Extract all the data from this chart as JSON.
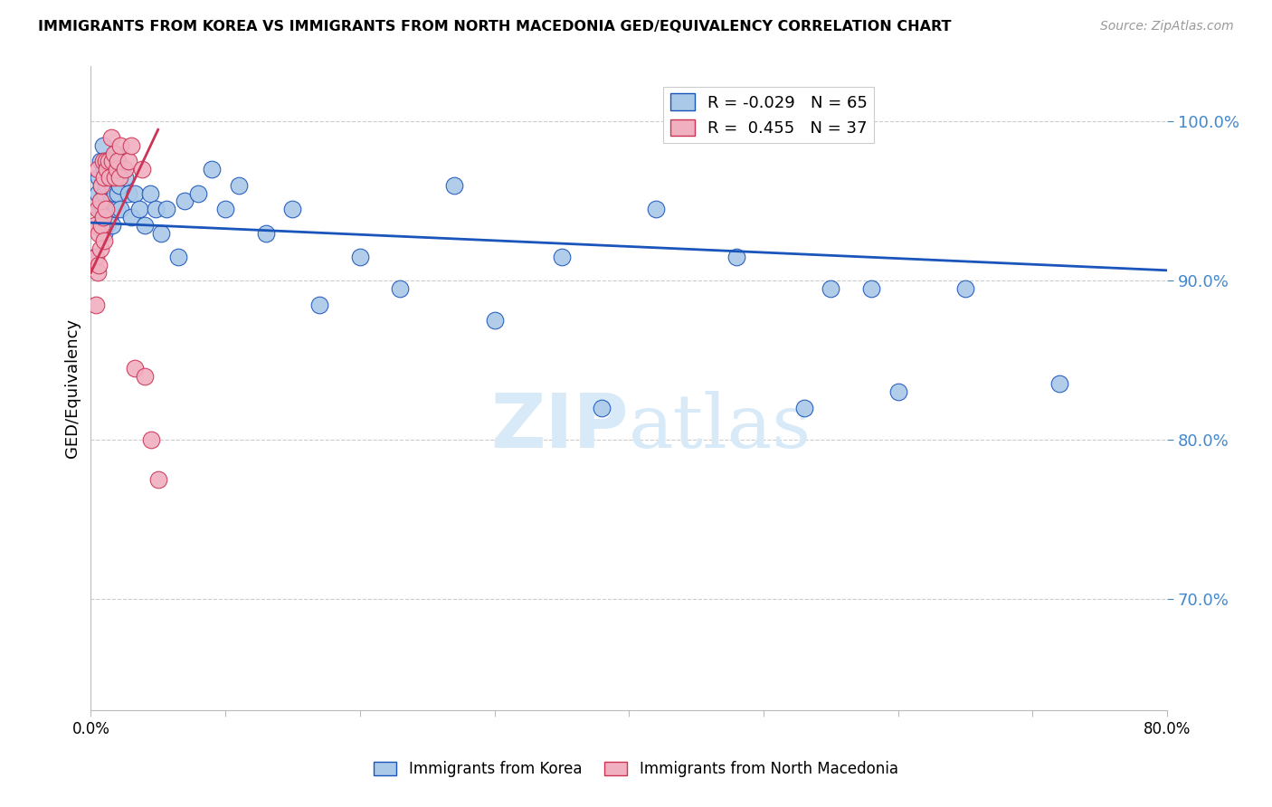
{
  "title": "IMMIGRANTS FROM KOREA VS IMMIGRANTS FROM NORTH MACEDONIA GED/EQUIVALENCY CORRELATION CHART",
  "source": "Source: ZipAtlas.com",
  "ylabel": "GED/Equivalency",
  "xlim": [
    0.0,
    0.8
  ],
  "ylim": [
    0.63,
    1.035
  ],
  "legend_korea_R": "-0.029",
  "legend_korea_N": "65",
  "legend_macedonia_R": "0.455",
  "legend_macedonia_N": "37",
  "color_korea": "#aac8e8",
  "color_korea_line": "#1a55bb",
  "color_macedonia": "#f0b0c0",
  "color_macedonia_line": "#cc3355",
  "color_ytick_labels": "#4488cc",
  "watermark_color": "#d8eaf8",
  "korea_x": [
    0.003,
    0.005,
    0.006,
    0.007,
    0.007,
    0.008,
    0.008,
    0.009,
    0.009,
    0.01,
    0.01,
    0.01,
    0.011,
    0.011,
    0.012,
    0.012,
    0.013,
    0.013,
    0.014,
    0.014,
    0.015,
    0.015,
    0.016,
    0.016,
    0.017,
    0.018,
    0.018,
    0.019,
    0.02,
    0.02,
    0.021,
    0.022,
    0.025,
    0.028,
    0.03,
    0.033,
    0.036,
    0.04,
    0.044,
    0.048,
    0.052,
    0.056,
    0.065,
    0.07,
    0.08,
    0.09,
    0.1,
    0.11,
    0.13,
    0.15,
    0.17,
    0.2,
    0.23,
    0.27,
    0.3,
    0.35,
    0.38,
    0.42,
    0.48,
    0.53,
    0.55,
    0.58,
    0.6,
    0.65,
    0.72
  ],
  "korea_y": [
    0.915,
    0.955,
    0.965,
    0.975,
    0.945,
    0.96,
    0.935,
    0.985,
    0.945,
    0.97,
    0.955,
    0.93,
    0.975,
    0.945,
    0.96,
    0.935,
    0.975,
    0.945,
    0.965,
    0.94,
    0.975,
    0.95,
    0.96,
    0.935,
    0.965,
    0.98,
    0.955,
    0.945,
    0.975,
    0.955,
    0.96,
    0.945,
    0.965,
    0.955,
    0.94,
    0.955,
    0.945,
    0.935,
    0.955,
    0.945,
    0.93,
    0.945,
    0.915,
    0.95,
    0.955,
    0.97,
    0.945,
    0.96,
    0.93,
    0.945,
    0.885,
    0.915,
    0.895,
    0.96,
    0.875,
    0.915,
    0.82,
    0.945,
    0.915,
    0.82,
    0.895,
    0.895,
    0.83,
    0.895,
    0.835
  ],
  "macedonia_x": [
    0.003,
    0.004,
    0.004,
    0.005,
    0.005,
    0.005,
    0.006,
    0.006,
    0.007,
    0.007,
    0.008,
    0.008,
    0.009,
    0.009,
    0.01,
    0.01,
    0.011,
    0.011,
    0.012,
    0.013,
    0.014,
    0.015,
    0.016,
    0.017,
    0.018,
    0.019,
    0.02,
    0.021,
    0.022,
    0.025,
    0.028,
    0.03,
    0.033,
    0.038,
    0.04,
    0.045,
    0.05
  ],
  "macedonia_y": [
    0.935,
    0.915,
    0.885,
    0.97,
    0.945,
    0.905,
    0.93,
    0.91,
    0.95,
    0.92,
    0.96,
    0.935,
    0.975,
    0.94,
    0.965,
    0.925,
    0.975,
    0.945,
    0.97,
    0.975,
    0.965,
    0.99,
    0.975,
    0.98,
    0.965,
    0.97,
    0.975,
    0.965,
    0.985,
    0.97,
    0.975,
    0.985,
    0.845,
    0.97,
    0.84,
    0.8,
    0.775
  ],
  "korea_trend_x": [
    0.0,
    0.8
  ],
  "korea_trend_y": [
    0.9365,
    0.9065
  ],
  "macedonia_trend_x": [
    0.0,
    0.05
  ],
  "macedonia_trend_y": [
    0.905,
    0.995
  ]
}
